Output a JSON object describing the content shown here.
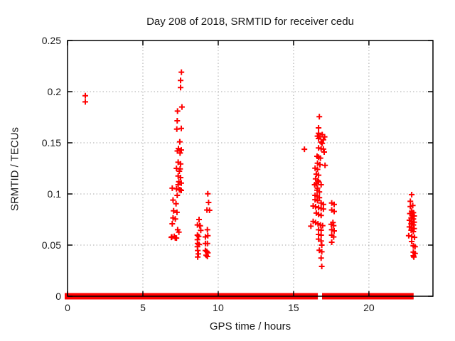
{
  "chart_data": {
    "type": "scatter",
    "title": "Day 208 of 2018, SRMTID for receiver cedu",
    "xlabel": "GPS time / hours",
    "ylabel": "SRMTID / TECUs",
    "xlim": [
      0,
      24.25
    ],
    "ylim": [
      0,
      0.25
    ],
    "xticks": [
      0,
      5,
      10,
      15,
      20
    ],
    "xtick_labels": [
      "0",
      "5",
      "10",
      "15",
      "20"
    ],
    "yticks": [
      0,
      0.05,
      0.1,
      0.15,
      0.2,
      0.25
    ],
    "ytick_labels": [
      "0",
      "0.05",
      "0.1",
      "0.15",
      "0.2",
      "0.25"
    ],
    "grid": true,
    "legend": "none",
    "marker": "plus",
    "marker_color": "#ff0000",
    "grid_color": "#a8a8a8",
    "border_color": "#000000",
    "zero_band_segments_hours": [
      [
        0,
        0.73
      ],
      [
        0.87,
        7.28
      ],
      [
        7.59,
        8.62
      ],
      [
        8.9,
        9.25
      ],
      [
        9.43,
        16.42
      ],
      [
        17.08,
        17.69
      ],
      [
        17.83,
        22.78
      ]
    ],
    "points": [
      [
        1.18,
        0.196
      ],
      [
        1.18,
        0.19
      ],
      [
        7.56,
        0.219
      ],
      [
        7.5,
        0.211
      ],
      [
        7.5,
        0.204
      ],
      [
        7.59,
        0.185
      ],
      [
        7.3,
        0.181
      ],
      [
        7.28,
        0.1715
      ],
      [
        7.25,
        0.1634
      ],
      [
        7.55,
        0.164
      ],
      [
        7.45,
        0.151
      ],
      [
        7.36,
        0.1444
      ],
      [
        7.55,
        0.143
      ],
      [
        7.29,
        0.142
      ],
      [
        7.47,
        0.14
      ],
      [
        7.34,
        0.131
      ],
      [
        7.5,
        0.1294
      ],
      [
        7.23,
        0.125
      ],
      [
        7.47,
        0.1245
      ],
      [
        7.42,
        0.1222
      ],
      [
        7.34,
        0.1176
      ],
      [
        7.5,
        0.116
      ],
      [
        7.39,
        0.112
      ],
      [
        7.55,
        0.1106
      ],
      [
        7.34,
        0.109
      ],
      [
        6.95,
        0.1056
      ],
      [
        7.23,
        0.1051
      ],
      [
        7.42,
        0.1042
      ],
      [
        7.48,
        0.104
      ],
      [
        7.55,
        0.1035
      ],
      [
        7.28,
        0.0986
      ],
      [
        7.0,
        0.094
      ],
      [
        7.2,
        0.0905
      ],
      [
        7.04,
        0.0835
      ],
      [
        7.26,
        0.082
      ],
      [
        7.0,
        0.0766
      ],
      [
        7.15,
        0.0755
      ],
      [
        6.95,
        0.0708
      ],
      [
        7.31,
        0.065
      ],
      [
        7.39,
        0.0627
      ],
      [
        6.92,
        0.058
      ],
      [
        7.08,
        0.0585
      ],
      [
        7.15,
        0.057
      ],
      [
        6.89,
        0.0576
      ],
      [
        7.23,
        0.0569
      ],
      [
        9.31,
        0.1002
      ],
      [
        9.36,
        0.0917
      ],
      [
        9.25,
        0.0843
      ],
      [
        9.42,
        0.084
      ],
      [
        8.73,
        0.075
      ],
      [
        8.62,
        0.0697
      ],
      [
        8.77,
        0.069
      ],
      [
        8.8,
        0.0688
      ],
      [
        8.84,
        0.0644
      ],
      [
        9.28,
        0.065
      ],
      [
        9.15,
        0.058
      ],
      [
        9.31,
        0.0592
      ],
      [
        8.62,
        0.0597
      ],
      [
        8.7,
        0.0585
      ],
      [
        8.62,
        0.0553
      ],
      [
        8.63,
        0.0516
      ],
      [
        8.73,
        0.0505
      ],
      [
        9.15,
        0.0516
      ],
      [
        9.28,
        0.0516
      ],
      [
        8.62,
        0.0484
      ],
      [
        8.64,
        0.0447
      ],
      [
        8.68,
        0.0414
      ],
      [
        8.64,
        0.0384
      ],
      [
        9.15,
        0.0447
      ],
      [
        9.24,
        0.0438
      ],
      [
        9.31,
        0.0424
      ],
      [
        9.2,
        0.0401
      ],
      [
        9.28,
        0.0389
      ],
      [
        15.72,
        0.1437
      ],
      [
        16.71,
        0.1755
      ],
      [
        16.66,
        0.1646
      ],
      [
        16.66,
        0.1593
      ],
      [
        16.9,
        0.158
      ],
      [
        16.59,
        0.1565
      ],
      [
        16.76,
        0.1558
      ],
      [
        17.06,
        0.1558
      ],
      [
        16.66,
        0.1542
      ],
      [
        16.98,
        0.153
      ],
      [
        16.83,
        0.1507
      ],
      [
        16.9,
        0.1495
      ],
      [
        16.66,
        0.145
      ],
      [
        16.83,
        0.1442
      ],
      [
        16.98,
        0.1438
      ],
      [
        17.03,
        0.141
      ],
      [
        16.56,
        0.1368
      ],
      [
        16.66,
        0.136
      ],
      [
        16.78,
        0.135
      ],
      [
        16.59,
        0.13
      ],
      [
        16.75,
        0.1287
      ],
      [
        17.09,
        0.128
      ],
      [
        16.43,
        0.1252
      ],
      [
        16.59,
        0.124
      ],
      [
        16.51,
        0.1194
      ],
      [
        16.66,
        0.1183
      ],
      [
        16.46,
        0.1148
      ],
      [
        16.61,
        0.113
      ],
      [
        16.66,
        0.1118
      ],
      [
        16.51,
        0.11
      ],
      [
        16.4,
        0.109
      ],
      [
        16.83,
        0.109
      ],
      [
        16.59,
        0.1056
      ],
      [
        16.56,
        0.1037
      ],
      [
        16.71,
        0.102
      ],
      [
        16.43,
        0.0986
      ],
      [
        16.56,
        0.098
      ],
      [
        16.71,
        0.0963
      ],
      [
        16.43,
        0.0944
      ],
      [
        16.59,
        0.0935
      ],
      [
        16.83,
        0.0912
      ],
      [
        16.98,
        0.0898
      ],
      [
        16.3,
        0.0882
      ],
      [
        16.46,
        0.0875
      ],
      [
        16.66,
        0.0866
      ],
      [
        16.83,
        0.0858
      ],
      [
        16.98,
        0.0852
      ],
      [
        16.51,
        0.0813
      ],
      [
        16.66,
        0.08
      ],
      [
        16.83,
        0.079
      ],
      [
        16.3,
        0.0731
      ],
      [
        16.46,
        0.072
      ],
      [
        16.62,
        0.0708
      ],
      [
        16.78,
        0.0697
      ],
      [
        16.93,
        0.069
      ],
      [
        16.15,
        0.0685
      ],
      [
        16.66,
        0.065
      ],
      [
        16.83,
        0.0646
      ],
      [
        16.66,
        0.0604
      ],
      [
        16.83,
        0.0597
      ],
      [
        16.66,
        0.0558
      ],
      [
        16.83,
        0.054
      ],
      [
        16.87,
        0.05
      ],
      [
        16.71,
        0.0449
      ],
      [
        16.87,
        0.0435
      ],
      [
        16.83,
        0.0373
      ],
      [
        16.87,
        0.0292
      ],
      [
        17.53,
        0.0912
      ],
      [
        17.69,
        0.0898
      ],
      [
        17.53,
        0.0843
      ],
      [
        17.69,
        0.0829
      ],
      [
        17.61,
        0.072
      ],
      [
        17.5,
        0.0703
      ],
      [
        17.66,
        0.069
      ],
      [
        17.53,
        0.065
      ],
      [
        17.69,
        0.0639
      ],
      [
        17.53,
        0.0597
      ],
      [
        17.66,
        0.058
      ],
      [
        17.53,
        0.0528
      ],
      [
        22.84,
        0.0993
      ],
      [
        22.75,
        0.0928
      ],
      [
        22.91,
        0.0887
      ],
      [
        22.75,
        0.0877
      ],
      [
        22.84,
        0.0831
      ],
      [
        22.95,
        0.0817
      ],
      [
        22.72,
        0.0808
      ],
      [
        22.87,
        0.0794
      ],
      [
        23.0,
        0.0785
      ],
      [
        22.8,
        0.0766
      ],
      [
        22.95,
        0.0755
      ],
      [
        22.69,
        0.0743
      ],
      [
        22.84,
        0.0731
      ],
      [
        23.0,
        0.0724
      ],
      [
        22.8,
        0.0708
      ],
      [
        22.95,
        0.0697
      ],
      [
        22.69,
        0.0678
      ],
      [
        22.84,
        0.0669
      ],
      [
        23.0,
        0.0662
      ],
      [
        22.8,
        0.0646
      ],
      [
        22.95,
        0.0632
      ],
      [
        22.64,
        0.0592
      ],
      [
        22.84,
        0.0585
      ],
      [
        23.03,
        0.0576
      ],
      [
        22.84,
        0.0535
      ],
      [
        22.95,
        0.0493
      ],
      [
        23.06,
        0.0484
      ],
      [
        22.95,
        0.0431
      ],
      [
        23.06,
        0.0419
      ],
      [
        22.95,
        0.0396
      ],
      [
        22.98,
        0.0384
      ]
    ]
  }
}
